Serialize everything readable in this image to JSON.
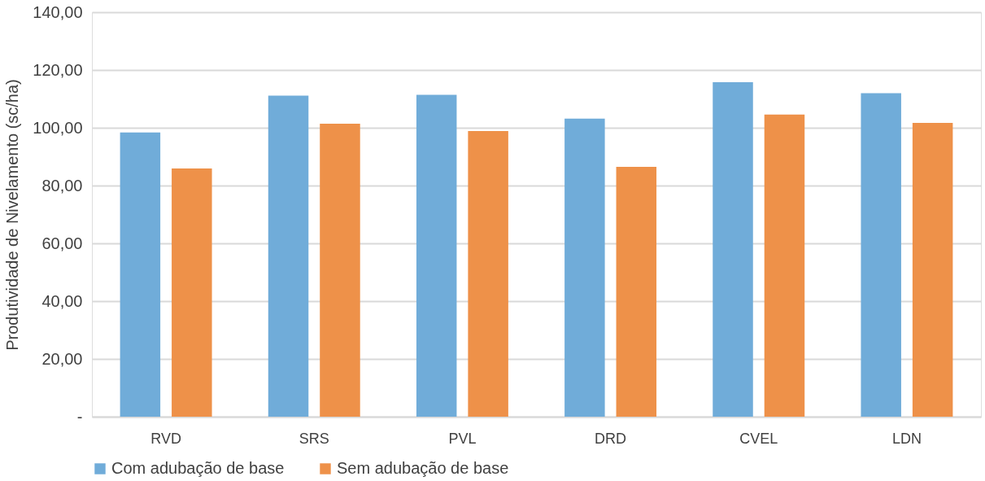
{
  "chart_data": {
    "type": "bar",
    "ylabel": "Produtividade de Nivelamento (sc/ha)",
    "categories": [
      "RVD",
      "SRS",
      "PVL",
      "DRD",
      "CVEL",
      "LDN"
    ],
    "series": [
      {
        "name": "Com adubação de base",
        "color": "#70acd9",
        "values": [
          98.4,
          111.1,
          111.4,
          103.2,
          115.8,
          112.0
        ]
      },
      {
        "name": "Sem adubação de base",
        "color": "#ee9149",
        "values": [
          85.9,
          101.4,
          98.9,
          86.5,
          104.6,
          101.7
        ]
      }
    ],
    "ylim": [
      0,
      140
    ],
    "yticks": [
      {
        "value": 0,
        "label": "-"
      },
      {
        "value": 20,
        "label": "20,00"
      },
      {
        "value": 40,
        "label": "40,00"
      },
      {
        "value": 60,
        "label": "60,00"
      },
      {
        "value": 80,
        "label": "80,00"
      },
      {
        "value": 100,
        "label": "100,00"
      },
      {
        "value": 120,
        "label": "120,00"
      },
      {
        "value": 140,
        "label": "140,00"
      }
    ],
    "grid": "y",
    "legend": "bottom"
  }
}
